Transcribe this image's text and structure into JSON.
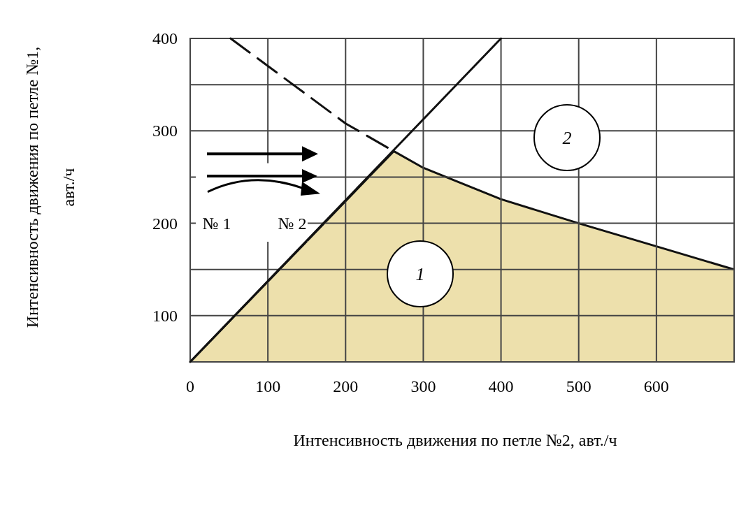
{
  "chart_data": {
    "type": "line",
    "xlabel": "Интенсивность движения по петле №2, авт./ч",
    "ylabel": "Интенсивность движения по петле №1, авт./ч",
    "xlim": [
      0,
      700
    ],
    "xticks": [
      0,
      100,
      200,
      300,
      400,
      500,
      600,
      {
        "value": 700,
        "label": null
      }
    ],
    "ylim": [
      50,
      400
    ],
    "yticks": [
      {
        "value": 50,
        "label": null
      },
      100,
      {
        "value": 150,
        "label": null
      },
      200,
      {
        "value": 250,
        "label": null
      },
      300,
      {
        "value": 350,
        "label": null
      },
      400
    ],
    "grid": true,
    "series": [
      {
        "type": "area",
        "color": "#ede0ac",
        "x": [
          0,
          262,
          300,
          400,
          500,
          600,
          700
        ],
        "values": [
          50,
          278,
          260,
          226,
          200,
          175,
          150
        ]
      },
      {
        "color": "#111111",
        "x": [
          0,
          400
        ],
        "values": [
          50,
          400
        ]
      },
      {
        "color": "#111111",
        "line_style": "dashed",
        "x": [
          52,
          200,
          262
        ],
        "values": [
          400,
          308,
          278
        ]
      }
    ],
    "annotations": [
      "1",
      "2",
      "№ 1",
      "№ 2"
    ]
  }
}
